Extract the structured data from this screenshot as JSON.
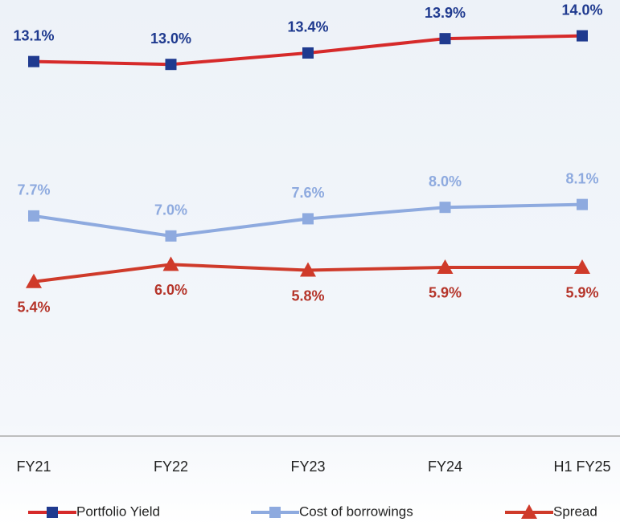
{
  "chart_data": {
    "type": "line",
    "categories": [
      "FY21",
      "FY22",
      "FY23",
      "FY24",
      "H1 FY25"
    ],
    "ylim": [
      0,
      15
    ],
    "series": [
      {
        "name": "Portfolio Yield",
        "color": "#d62a2a",
        "marker_color": "#1f3a8f",
        "marker": "square",
        "label_color": "#1f3a8f",
        "values": [
          13.1,
          13.0,
          13.4,
          13.9,
          14.0
        ],
        "value_labels": [
          "13.1%",
          "13.0%",
          "13.4%",
          "13.9%",
          "14.0%"
        ]
      },
      {
        "name": "Cost of borrowings",
        "color": "#8eaadf",
        "marker_color": "#8eaadf",
        "marker": "square",
        "label_color": "#8eaadf",
        "values": [
          7.7,
          7.0,
          7.6,
          8.0,
          8.1
        ],
        "value_labels": [
          "7.7%",
          "7.0%",
          "7.6%",
          "8.0%",
          "8.1%"
        ]
      },
      {
        "name": "Spread",
        "color": "#cf3a2a",
        "marker_color": "#cf3a2a",
        "marker": "triangle",
        "label_color": "#b5352a",
        "values": [
          5.4,
          6.0,
          5.8,
          5.9,
          5.9
        ],
        "value_labels": [
          "5.4%",
          "6.0%",
          "5.8%",
          "5.9%",
          "5.9%"
        ]
      }
    ]
  }
}
